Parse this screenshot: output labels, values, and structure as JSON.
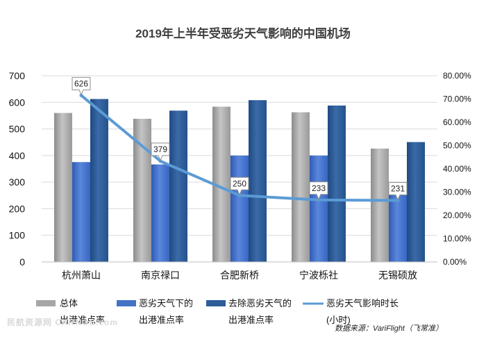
{
  "chart_data": {
    "type": "bar+line",
    "title": "2019年上半年受恶劣天气影响的中国机场",
    "categories": [
      "杭州萧山",
      "南京禄口",
      "合肥新桥",
      "宁波栎社",
      "无锡硕放"
    ],
    "y_left": {
      "min": 0,
      "max": 700,
      "step": 100,
      "ticks": [
        "0",
        "100",
        "200",
        "300",
        "400",
        "500",
        "600",
        "700"
      ]
    },
    "y_right": {
      "min": 0,
      "max": 0.8,
      "step": 0.1,
      "ticks": [
        "0.00%",
        "10.00%",
        "20.00%",
        "30.00%",
        "40.00%",
        "50.00%",
        "60.00%",
        "70.00%",
        "80.00%"
      ]
    },
    "series": [
      {
        "name": "总体出港准点率",
        "legend_lines": [
          "总体",
          "出港准点率"
        ],
        "kind": "bar",
        "axis": "right",
        "color": "#a6a6a6",
        "values": [
          0.64,
          0.615,
          0.667,
          0.643,
          0.487
        ]
      },
      {
        "name": "恶劣天气下的出港准点率",
        "legend_lines": [
          "恶劣天气下的",
          "出港准点率"
        ],
        "kind": "bar",
        "axis": "right",
        "color": "#4472c4",
        "values": [
          0.429,
          0.419,
          0.457,
          0.457,
          0.295
        ]
      },
      {
        "name": "去除恶劣天气的出港准点率",
        "legend_lines": [
          "去除恶劣天气的",
          "出港准点率"
        ],
        "kind": "bar",
        "axis": "right",
        "color": "#2e5d9a",
        "values": [
          0.7,
          0.65,
          0.695,
          0.672,
          0.515
        ]
      },
      {
        "name": "恶劣天气影响时长(小时)",
        "legend_lines": [
          "恶劣天气影响时长",
          "(小时)"
        ],
        "kind": "line",
        "axis": "left",
        "color": "#5b9bd5",
        "values": [
          626,
          379,
          250,
          233,
          231
        ],
        "labels": [
          "626",
          "379",
          "250",
          "233",
          "231"
        ]
      }
    ],
    "source": "数据来源：VariFlight（飞常准）",
    "watermark": "民航资源网 CARNOC.com"
  }
}
